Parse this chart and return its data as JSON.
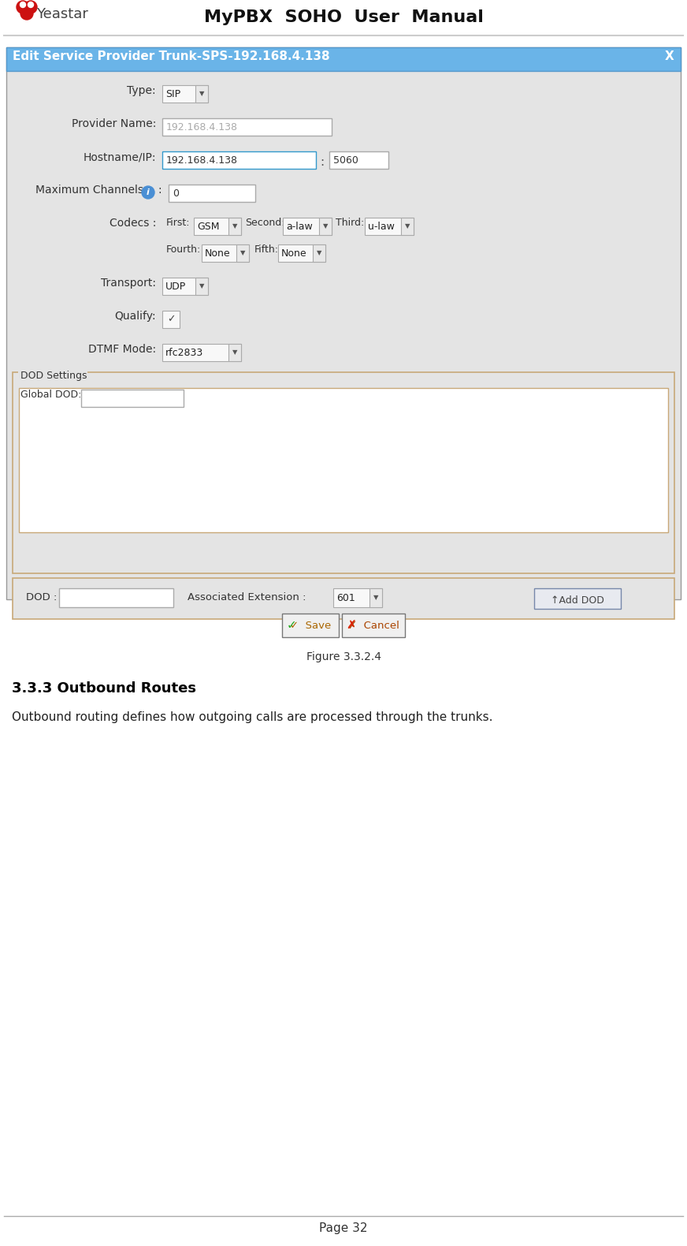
{
  "title": "MyPBX  SOHO  User  Manual",
  "page_num": "Page 32",
  "figure_label": "Figure 3.3.2.4",
  "section_title": "3.3.3 Outbound Routes",
  "section_body": "Outbound routing defines how outgoing calls are processed through the trunks.",
  "dialog_title": "Edit Service Provider Trunk-SPS-192.168.4.138",
  "dialog_title_bg": "#6ab4e8",
  "dialog_bg": "#e4e4e4",
  "dialog_close": "X",
  "label_color": "#333333",
  "header_line_color": "#cccccc",
  "footer_line_color": "#aaaaaa",
  "dod_outer_border": "#c8a878",
  "info_icon_color": "#4a8fd4"
}
